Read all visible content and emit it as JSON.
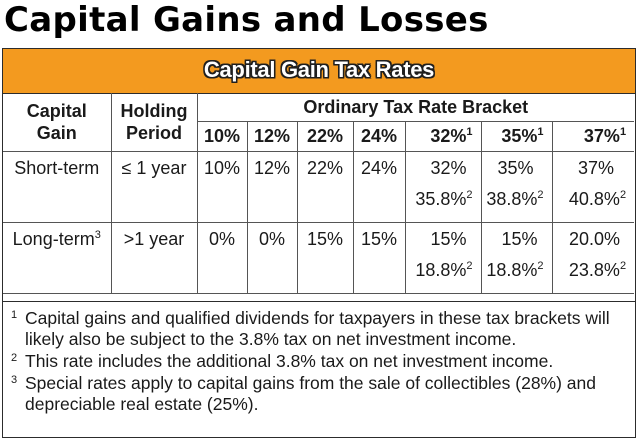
{
  "page": {
    "title": "Capital Gains and Losses"
  },
  "table": {
    "banner_title": "Capital Gain Tax Rates",
    "header": {
      "capital_gain": "Capital Gain",
      "holding_period": "Holding Period",
      "bracket_group": "Ordinary Tax Rate Bracket",
      "brackets": [
        {
          "label": "10%",
          "mark": ""
        },
        {
          "label": "12%",
          "mark": ""
        },
        {
          "label": "22%",
          "mark": ""
        },
        {
          "label": "24%",
          "mark": ""
        },
        {
          "label": "32%",
          "mark": "1"
        },
        {
          "label": "35%",
          "mark": "1"
        },
        {
          "label": "37%",
          "mark": "1"
        }
      ]
    },
    "rows": [
      {
        "gain": "Short-term",
        "gain_mark": "",
        "period": "≤ 1 year",
        "rates": [
          "10%",
          "12%",
          "22%",
          "24%",
          "32%",
          "35%",
          "37%"
        ],
        "additional": [
          {
            "value": "35.8%",
            "mark": "2"
          },
          {
            "value": "38.8%",
            "mark": "2"
          },
          {
            "value": "40.8%",
            "mark": "2"
          }
        ]
      },
      {
        "gain": "Long-term",
        "gain_mark": "3",
        "period": ">1 year",
        "rates": [
          "0%",
          "0%",
          "15%",
          "15%",
          "15%",
          "15%",
          "20.0%"
        ],
        "additional": [
          {
            "value": "18.8%",
            "mark": "2"
          },
          {
            "value": "18.8%",
            "mark": "2"
          },
          {
            "value": "23.8%",
            "mark": "2"
          }
        ]
      }
    ]
  },
  "footnotes": [
    {
      "mark": "1",
      "text": "Capital gains and qualified dividends for taxpayers in these tax brackets will likely also be subject to the 3.8% tax on net investment income."
    },
    {
      "mark": "2",
      "text": "This rate includes the additional 3.8% tax on net investment income."
    },
    {
      "mark": "3",
      "text": "Special rates apply to capital gains from the sale of collectibles (28%) and depreciable real estate (25%)."
    }
  ],
  "colors": {
    "banner": "#f39a1f",
    "banner_text": "#ffffff",
    "border": "#2c2c2c"
  }
}
